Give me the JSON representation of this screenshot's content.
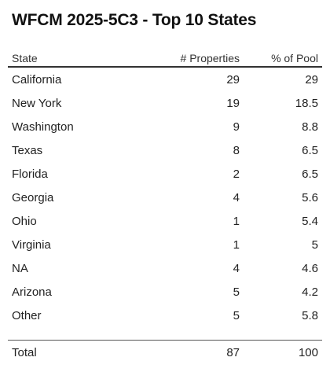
{
  "chart_data": {
    "type": "table",
    "title": "WFCM 2025-5C3 - Top 10 States",
    "columns": [
      "State",
      "# Properties",
      "% of Pool"
    ],
    "rows": [
      {
        "state": "California",
        "properties": "29",
        "pool": "29"
      },
      {
        "state": "New York",
        "properties": "19",
        "pool": "18.5"
      },
      {
        "state": "Washington",
        "properties": "9",
        "pool": "8.8"
      },
      {
        "state": "Texas",
        "properties": "8",
        "pool": "6.5"
      },
      {
        "state": "Florida",
        "properties": "2",
        "pool": "6.5"
      },
      {
        "state": "Georgia",
        "properties": "4",
        "pool": "5.6"
      },
      {
        "state": "Ohio",
        "properties": "1",
        "pool": "5.4"
      },
      {
        "state": "Virginia",
        "properties": "1",
        "pool": "5"
      },
      {
        "state": "NA",
        "properties": "4",
        "pool": "4.6"
      },
      {
        "state": "Arizona",
        "properties": "5",
        "pool": "4.2"
      },
      {
        "state": "Other",
        "properties": "5",
        "pool": "5.8"
      }
    ],
    "total": {
      "label": "Total",
      "properties": "87",
      "pool": "100"
    }
  }
}
